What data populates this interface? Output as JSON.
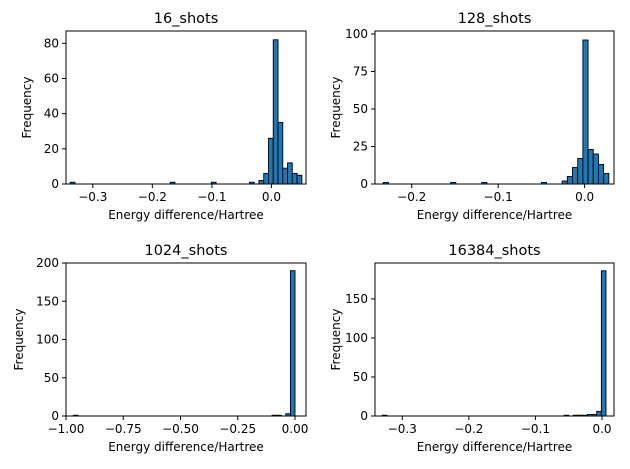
{
  "colors": {
    "bar_fill": "#1f77b4",
    "bar_edge": "#000000",
    "axis": "#000000",
    "background": "#ffffff"
  },
  "chart_data": [
    {
      "type": "bar",
      "title": "16_shots",
      "xlabel": "Energy difference/Hartree",
      "ylabel": "Frequency",
      "xlim": [
        -0.345,
        0.058
      ],
      "ylim": [
        0,
        87
      ],
      "xticks": [
        -0.3,
        -0.2,
        -0.1,
        0.0
      ],
      "xticklabels": [
        "−0.3",
        "−0.2",
        "−0.1",
        "0.0"
      ],
      "yticks": [
        0,
        20,
        40,
        60,
        80
      ],
      "yticklabels": [
        "0",
        "20",
        "40",
        "60",
        "80"
      ],
      "bins": [
        {
          "x0": -0.338,
          "x1": -0.33,
          "count": 1
        },
        {
          "x0": -0.17,
          "x1": -0.162,
          "count": 1
        },
        {
          "x0": -0.101,
          "x1": -0.093,
          "count": 1
        },
        {
          "x0": -0.037,
          "x1": -0.029,
          "count": 1
        },
        {
          "x0": -0.021,
          "x1": -0.013,
          "count": 2
        },
        {
          "x0": -0.013,
          "x1": -0.005,
          "count": 6
        },
        {
          "x0": -0.005,
          "x1": 0.003,
          "count": 26
        },
        {
          "x0": 0.003,
          "x1": 0.011,
          "count": 82
        },
        {
          "x0": 0.011,
          "x1": 0.019,
          "count": 35
        },
        {
          "x0": 0.019,
          "x1": 0.027,
          "count": 9
        },
        {
          "x0": 0.027,
          "x1": 0.035,
          "count": 12
        },
        {
          "x0": 0.035,
          "x1": 0.043,
          "count": 6
        },
        {
          "x0": 0.043,
          "x1": 0.051,
          "count": 5
        }
      ]
    },
    {
      "type": "bar",
      "title": "128_shots",
      "xlabel": "Energy difference/Hartree",
      "ylabel": "Frequency",
      "xlim": [
        -0.2425,
        0.034
      ],
      "ylim": [
        0,
        102
      ],
      "xticks": [
        -0.2,
        -0.1,
        0.0
      ],
      "xticklabels": [
        "−0.2",
        "−0.1",
        "0.0"
      ],
      "yticks": [
        0,
        25,
        50,
        75,
        100
      ],
      "yticklabels": [
        "0",
        "25",
        "50",
        "75",
        "100"
      ],
      "bins": [
        {
          "x0": -0.233,
          "x1": -0.227,
          "count": 1
        },
        {
          "x0": -0.155,
          "x1": -0.149,
          "count": 1
        },
        {
          "x0": -0.119,
          "x1": -0.113,
          "count": 1
        },
        {
          "x0": -0.05,
          "x1": -0.044,
          "count": 1
        },
        {
          "x0": -0.026,
          "x1": -0.02,
          "count": 2
        },
        {
          "x0": -0.02,
          "x1": -0.014,
          "count": 5
        },
        {
          "x0": -0.014,
          "x1": -0.008,
          "count": 11
        },
        {
          "x0": -0.008,
          "x1": -0.002,
          "count": 17
        },
        {
          "x0": -0.002,
          "x1": 0.004,
          "count": 96
        },
        {
          "x0": 0.004,
          "x1": 0.01,
          "count": 23
        },
        {
          "x0": 0.01,
          "x1": 0.016,
          "count": 20
        },
        {
          "x0": 0.016,
          "x1": 0.022,
          "count": 13
        },
        {
          "x0": 0.022,
          "x1": 0.028,
          "count": 7
        }
      ]
    },
    {
      "type": "bar",
      "title": "1024_shots",
      "xlabel": "Energy difference/Hartree",
      "ylabel": "Frequency",
      "xlim": [
        -1.0,
        0.048
      ],
      "ylim": [
        0,
        200
      ],
      "xticks": [
        -1.0,
        -0.75,
        -0.5,
        -0.25,
        0.0
      ],
      "xticklabels": [
        "−1.00",
        "−0.75",
        "−0.50",
        "−0.25",
        "0.00"
      ],
      "yticks": [
        0,
        50,
        100,
        150,
        200
      ],
      "yticklabels": [
        "0",
        "50",
        "100",
        "150",
        "200"
      ],
      "bins": [
        {
          "x0": -0.968,
          "x1": -0.948,
          "count": 1
        },
        {
          "x0": -0.1,
          "x1": -0.08,
          "count": 1
        },
        {
          "x0": -0.08,
          "x1": -0.06,
          "count": 1
        },
        {
          "x0": -0.04,
          "x1": -0.02,
          "count": 3
        },
        {
          "x0": -0.02,
          "x1": 0.0,
          "count": 190
        }
      ]
    },
    {
      "type": "bar",
      "title": "16384_shots",
      "xlabel": "Energy difference/Hartree",
      "ylabel": "Frequency",
      "xlim": [
        -0.341,
        0.018
      ],
      "ylim": [
        0,
        196
      ],
      "xticks": [
        -0.3,
        -0.2,
        -0.1,
        0.0
      ],
      "xticklabels": [
        "−0.3",
        "−0.2",
        "−0.1",
        "0.0"
      ],
      "yticks": [
        0,
        50,
        100,
        150
      ],
      "yticklabels": [
        "0",
        "50",
        "100",
        "150"
      ],
      "bins": [
        {
          "x0": -0.33,
          "x1": -0.323,
          "count": 1
        },
        {
          "x0": -0.057,
          "x1": -0.05,
          "count": 1
        },
        {
          "x0": -0.043,
          "x1": -0.036,
          "count": 1
        },
        {
          "x0": -0.036,
          "x1": -0.029,
          "count": 1
        },
        {
          "x0": -0.029,
          "x1": -0.022,
          "count": 1
        },
        {
          "x0": -0.022,
          "x1": -0.015,
          "count": 2
        },
        {
          "x0": -0.015,
          "x1": -0.008,
          "count": 2
        },
        {
          "x0": -0.008,
          "x1": -0.001,
          "count": 6
        },
        {
          "x0": -0.001,
          "x1": 0.006,
          "count": 186
        }
      ]
    }
  ]
}
